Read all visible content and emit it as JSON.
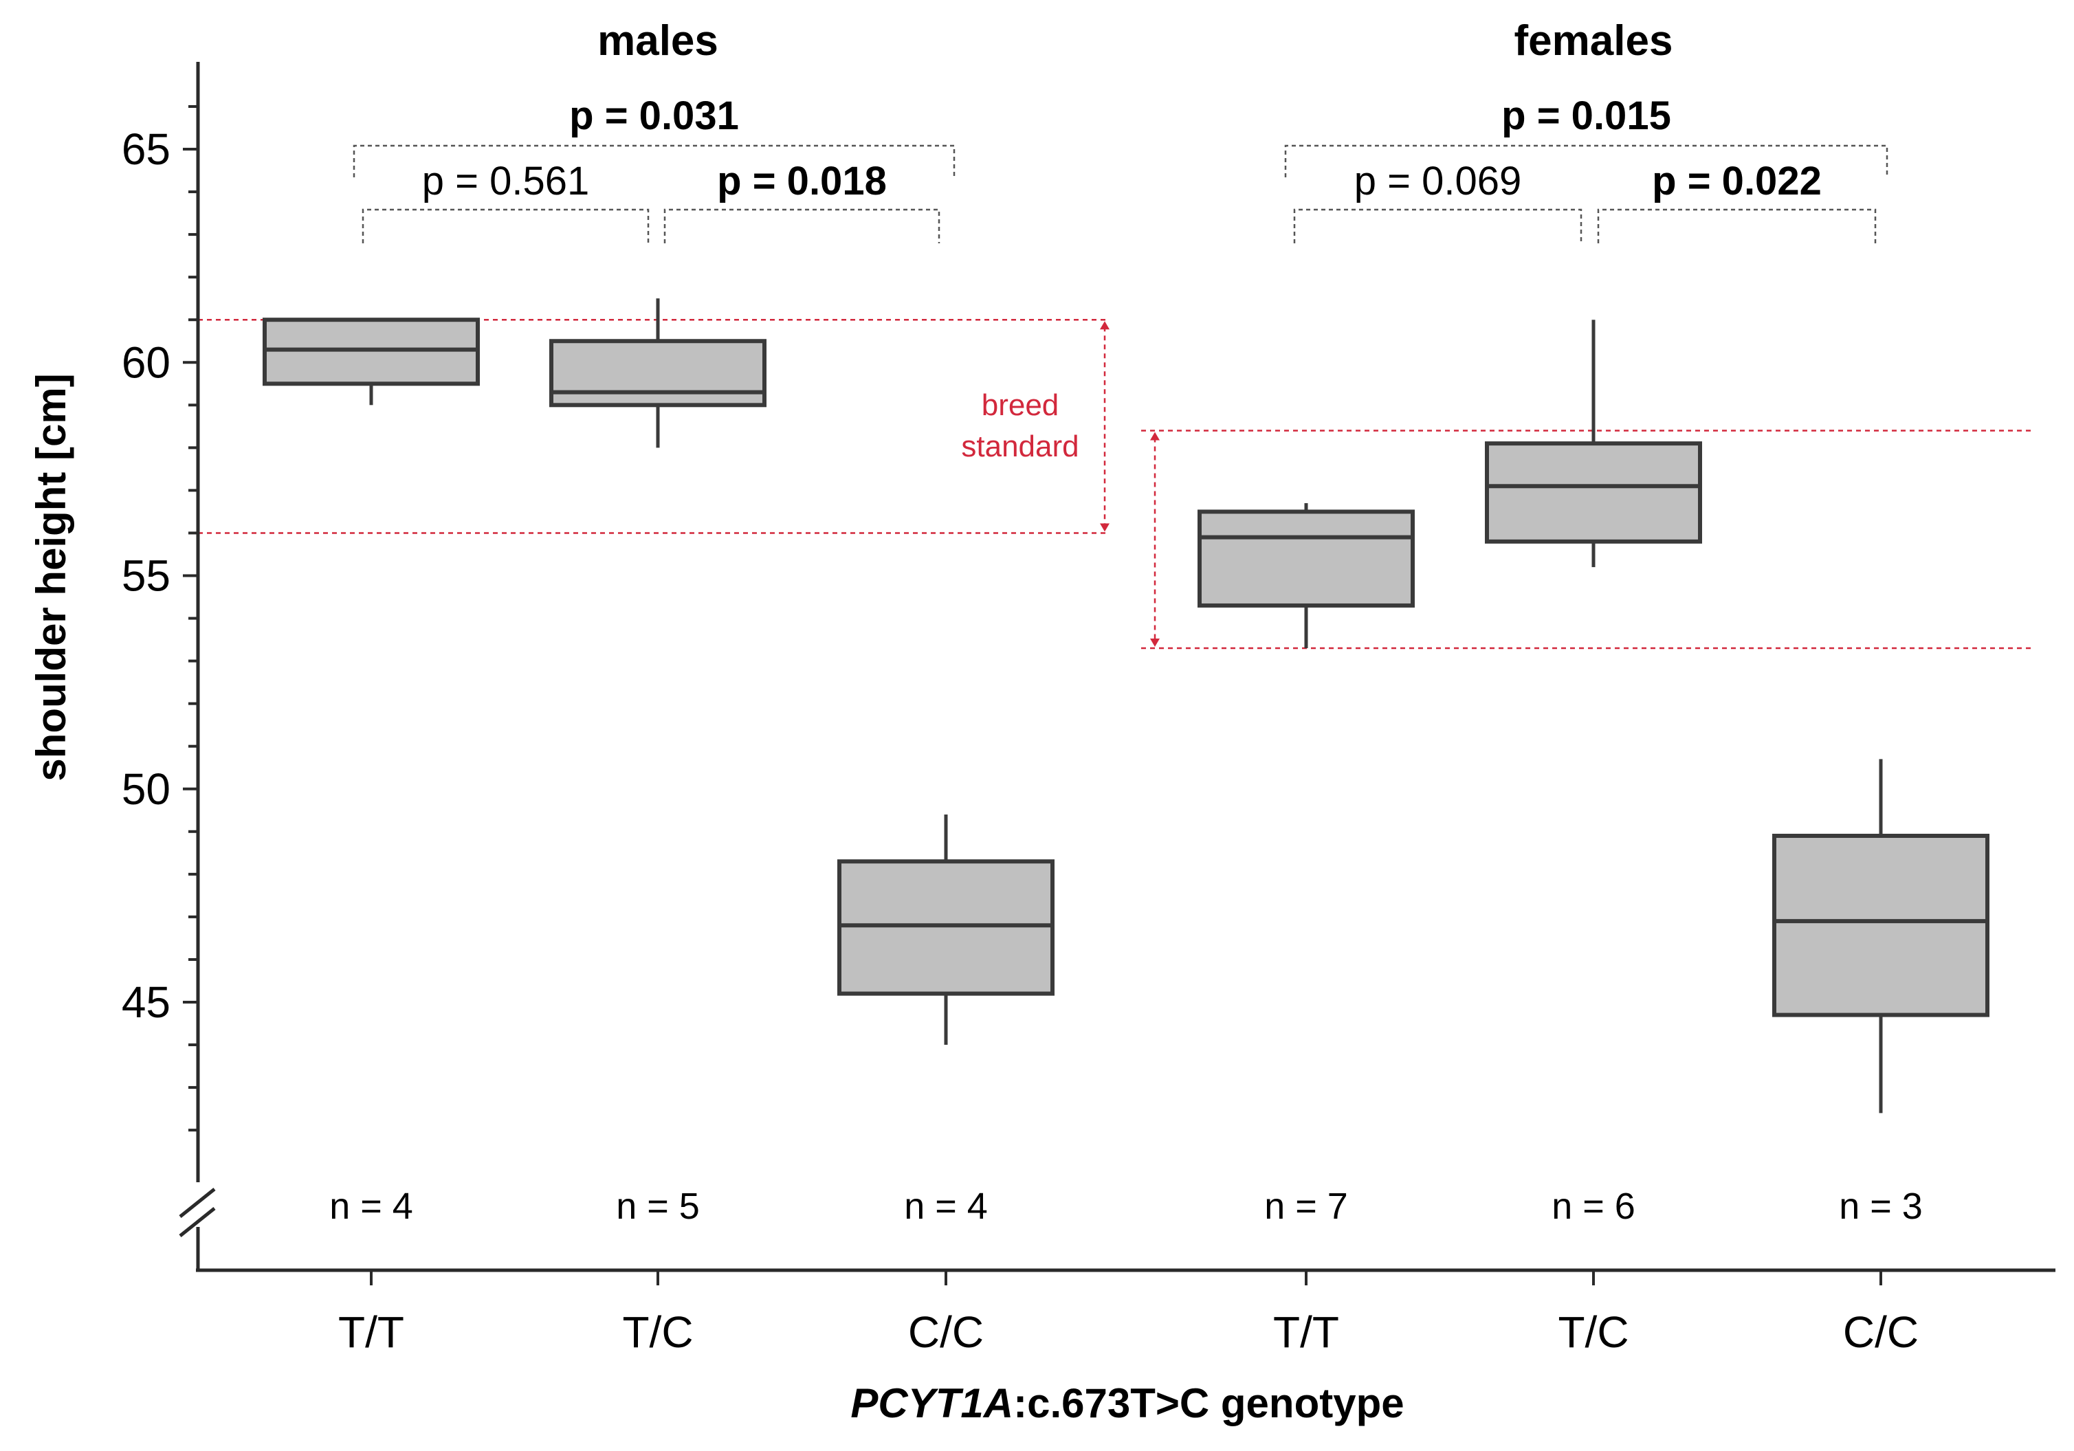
{
  "chart_data": {
    "type": "box",
    "xlabel_gene": "PCYT1A",
    "xlabel_rest": ":c.673T>C genotype",
    "ylabel": "shoulder height [cm]",
    "ylim": [
      39.5,
      67
    ],
    "yticks": [
      45,
      50,
      55,
      60,
      65
    ],
    "y_axis_break": true,
    "groups": [
      {
        "name": "males",
        "boxes": [
          {
            "genotype": "T/T",
            "n_label": "n = 4",
            "whisker_low": 59.0,
            "q1": 59.5,
            "median": 60.3,
            "q3": 61.0,
            "whisker_high": 61.0
          },
          {
            "genotype": "T/C",
            "n_label": "n = 5",
            "whisker_low": 58.0,
            "q1": 59.0,
            "median": 59.3,
            "q3": 60.5,
            "whisker_high": 61.5
          },
          {
            "genotype": "C/C",
            "n_label": "n = 4",
            "whisker_low": 44.0,
            "q1": 45.2,
            "median": 46.8,
            "q3": 48.3,
            "whisker_high": 49.4
          }
        ],
        "comparisons": [
          {
            "pair": [
              "T/T",
              "C/C"
            ],
            "label": "p = 0.031",
            "significant": true
          },
          {
            "pair": [
              "T/T",
              "T/C"
            ],
            "label": "p = 0.561",
            "significant": false
          },
          {
            "pair": [
              "T/C",
              "C/C"
            ],
            "label": "p = 0.018",
            "significant": true
          }
        ],
        "breed_standard": [
          56.0,
          61.0
        ]
      },
      {
        "name": "females",
        "boxes": [
          {
            "genotype": "T/T",
            "n_label": "n = 7",
            "whisker_low": 53.3,
            "q1": 54.3,
            "median": 55.9,
            "q3": 56.5,
            "whisker_high": 56.7
          },
          {
            "genotype": "T/C",
            "n_label": "n = 6",
            "whisker_low": 55.2,
            "q1": 55.8,
            "median": 57.1,
            "q3": 58.1,
            "whisker_high": 61.0
          },
          {
            "genotype": "C/C",
            "n_label": "n = 3",
            "whisker_low": 42.4,
            "q1": 44.7,
            "median": 46.9,
            "q3": 48.9,
            "whisker_high": 50.7
          }
        ],
        "comparisons": [
          {
            "pair": [
              "T/T",
              "C/C"
            ],
            "label": "p = 0.015",
            "significant": true
          },
          {
            "pair": [
              "T/T",
              "T/C"
            ],
            "label": "p = 0.069",
            "significant": false
          },
          {
            "pair": [
              "T/C",
              "C/C"
            ],
            "label": "p = 0.022",
            "significant": true
          }
        ],
        "breed_standard": [
          53.3,
          58.4
        ]
      }
    ],
    "breed_standard_label": [
      "breed",
      "standard"
    ],
    "colors": {
      "box_fill": "#c0c0c0",
      "box_stroke": "#3a3a3a",
      "axis": "#2a2a2a",
      "breed_standard": "#d2283c",
      "bracket": "#555555"
    }
  }
}
